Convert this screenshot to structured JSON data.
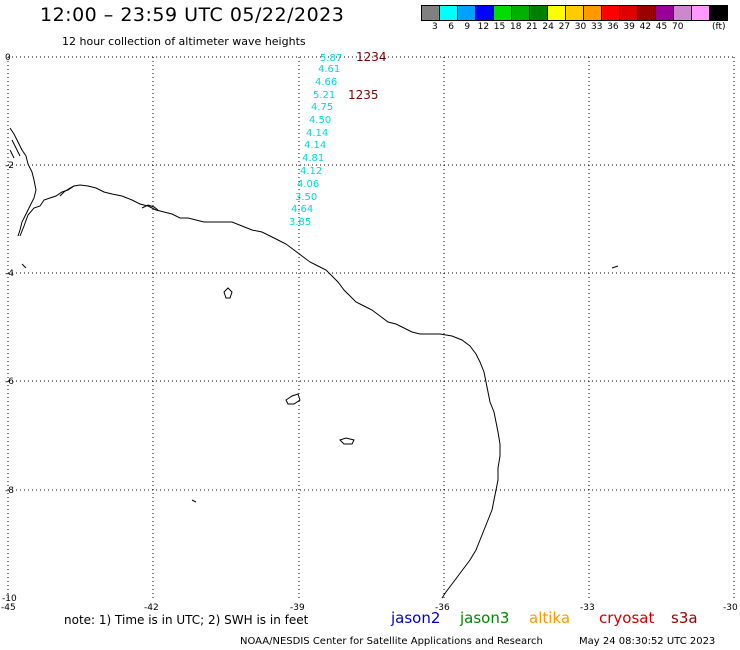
{
  "header": {
    "title": "12:00 – 23:59 UTC 05/22/2023",
    "subtitle": "12 hour collection of altimeter wave heights"
  },
  "legend": {
    "colors": [
      "#808080",
      "#00ffff",
      "#00a0ff",
      "#0000ff",
      "#00dd00",
      "#00b000",
      "#008000",
      "#ffff00",
      "#ffcc00",
      "#ff9900",
      "#ff0000",
      "#dd0000",
      "#990000",
      "#990099",
      "#cc88cc",
      "#ff99ff",
      "#000000"
    ],
    "labels": [
      "3",
      "6",
      "9",
      "12",
      "15",
      "18",
      "21",
      "24",
      "27",
      "30",
      "33",
      "36",
      "39",
      "42",
      "45",
      "70"
    ],
    "unit": "(ft)"
  },
  "map": {
    "lon_ticks": [
      "-45",
      "-42",
      "-39",
      "-36",
      "-33",
      "-30"
    ],
    "lat_ticks": [
      "0",
      "-2",
      "-4",
      "-6",
      "-8",
      "-10"
    ],
    "pass_labels": [
      "1234",
      "1235"
    ],
    "pass_color": "#7a0000",
    "wave_color": "#00d8d8",
    "wave_heights": [
      "5.87",
      "4.61",
      "4.66",
      "5.21",
      "4.75",
      "4.50",
      "4.14",
      "4.14",
      "4.81",
      "4.12",
      "4.06",
      "3.50",
      "4.64",
      "3.85"
    ]
  },
  "footer": {
    "note": "note:  1) Time is in UTC;  2) SWH is in feet",
    "satellites": [
      {
        "name": "jason2",
        "color": "#0000cc"
      },
      {
        "name": "jason3",
        "color": "#008800"
      },
      {
        "name": "altika",
        "color": "#ff9900"
      },
      {
        "name": "cryosat",
        "color": "#cc0000"
      },
      {
        "name": "s3a",
        "color": "#990000"
      }
    ],
    "credit": "NOAA/NESDIS Center for Satellite Applications and Research",
    "timestamp": "May 24 08:30:52 UTC 2023"
  }
}
